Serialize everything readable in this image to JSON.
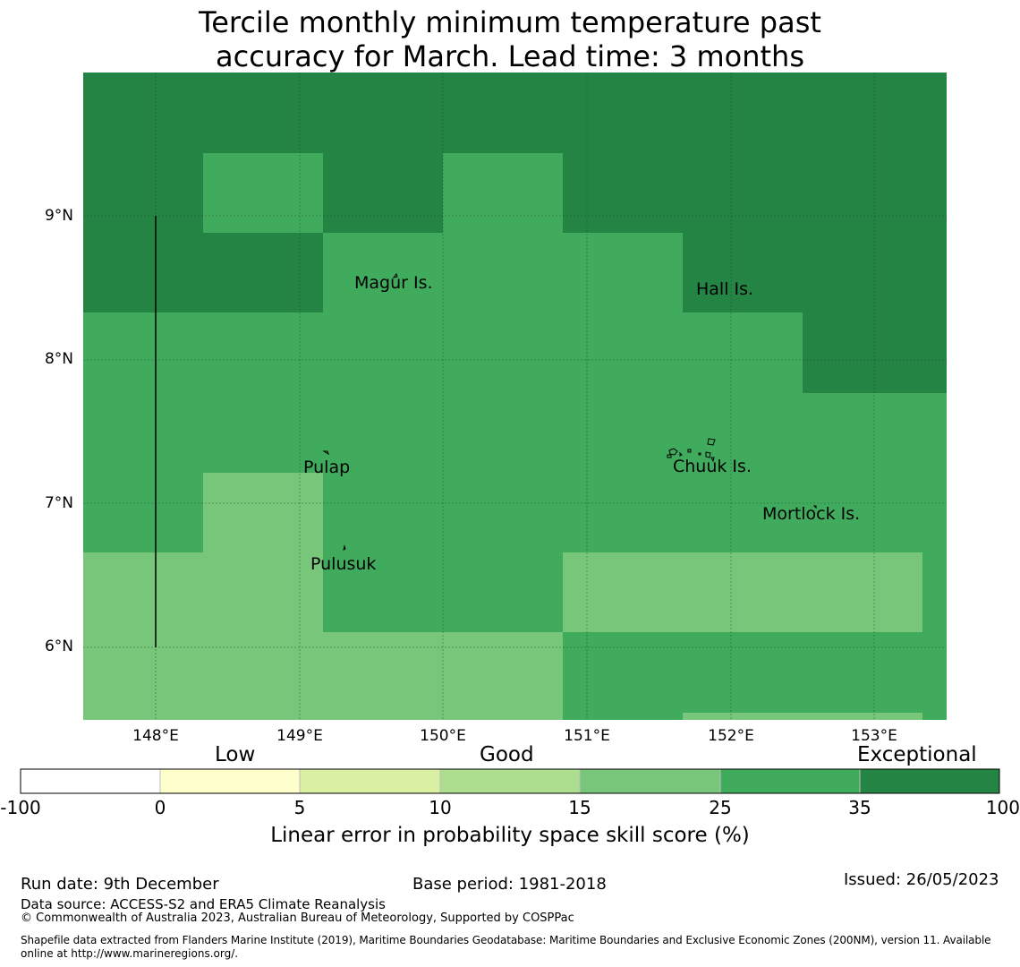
{
  "title_line1": "Tercile monthly minimum temperature past",
  "title_line2": "accuracy for March. Lead time: 3 months",
  "map": {
    "lon_range": [
      147.5,
      153.5
    ],
    "lat_range": [
      5.5,
      10.0
    ],
    "lon_ticks": [
      "148°E",
      "149°E",
      "150°E",
      "151°E",
      "152°E",
      "153°E"
    ],
    "lat_ticks": [
      "9°N",
      "8°N",
      "7°N",
      "6°N"
    ],
    "places": [
      {
        "name": "Magur Is.",
        "lon": 149.6,
        "lat": 8.55
      },
      {
        "name": "Hall Is.",
        "lon": 151.95,
        "lat": 8.5
      },
      {
        "name": "Pulap",
        "lon": 149.2,
        "lat": 7.25
      },
      {
        "name": "Chuuk Is.",
        "lon": 151.85,
        "lat": 7.25
      },
      {
        "name": "Mortlock Is.",
        "lon": 152.6,
        "lat": 6.93
      },
      {
        "name": "Pulusuk",
        "lon": 149.35,
        "lat": 6.58
      }
    ]
  },
  "legend": {
    "categories": [
      "Low",
      "Good",
      "Exceptional"
    ],
    "ticks": [
      "-100",
      "0",
      "5",
      "10",
      "15",
      "25",
      "35",
      "100"
    ],
    "colors": [
      "#ffffff",
      "#ffffcc",
      "#d9f0a3",
      "#addd8e",
      "#78c679",
      "#41ab5d",
      "#238443"
    ],
    "xlabel": "Linear error in probability space skill score (%)"
  },
  "footer": {
    "run_date": "Run date: 9th December",
    "base_period": "Base period: 1981-2018",
    "issued": "Issued: 26/05/2023",
    "data_source": "Data source: ACCESS-S2 and ERA5 Climate Reanalysis",
    "copyright": "© Commonwealth of Australia 2023, Australian Bureau of Meteorology, Supported by COSPPac",
    "shapefile_line1": "Shapefile data extracted from Flanders Marine Institute (2019), Maritime Boundaries Geodatabase: Maritime Boundaries and Exclusive Economic Zones (200NM), version 11. Available",
    "shapefile_line2": "online at http://www.marineregions.org/."
  }
}
